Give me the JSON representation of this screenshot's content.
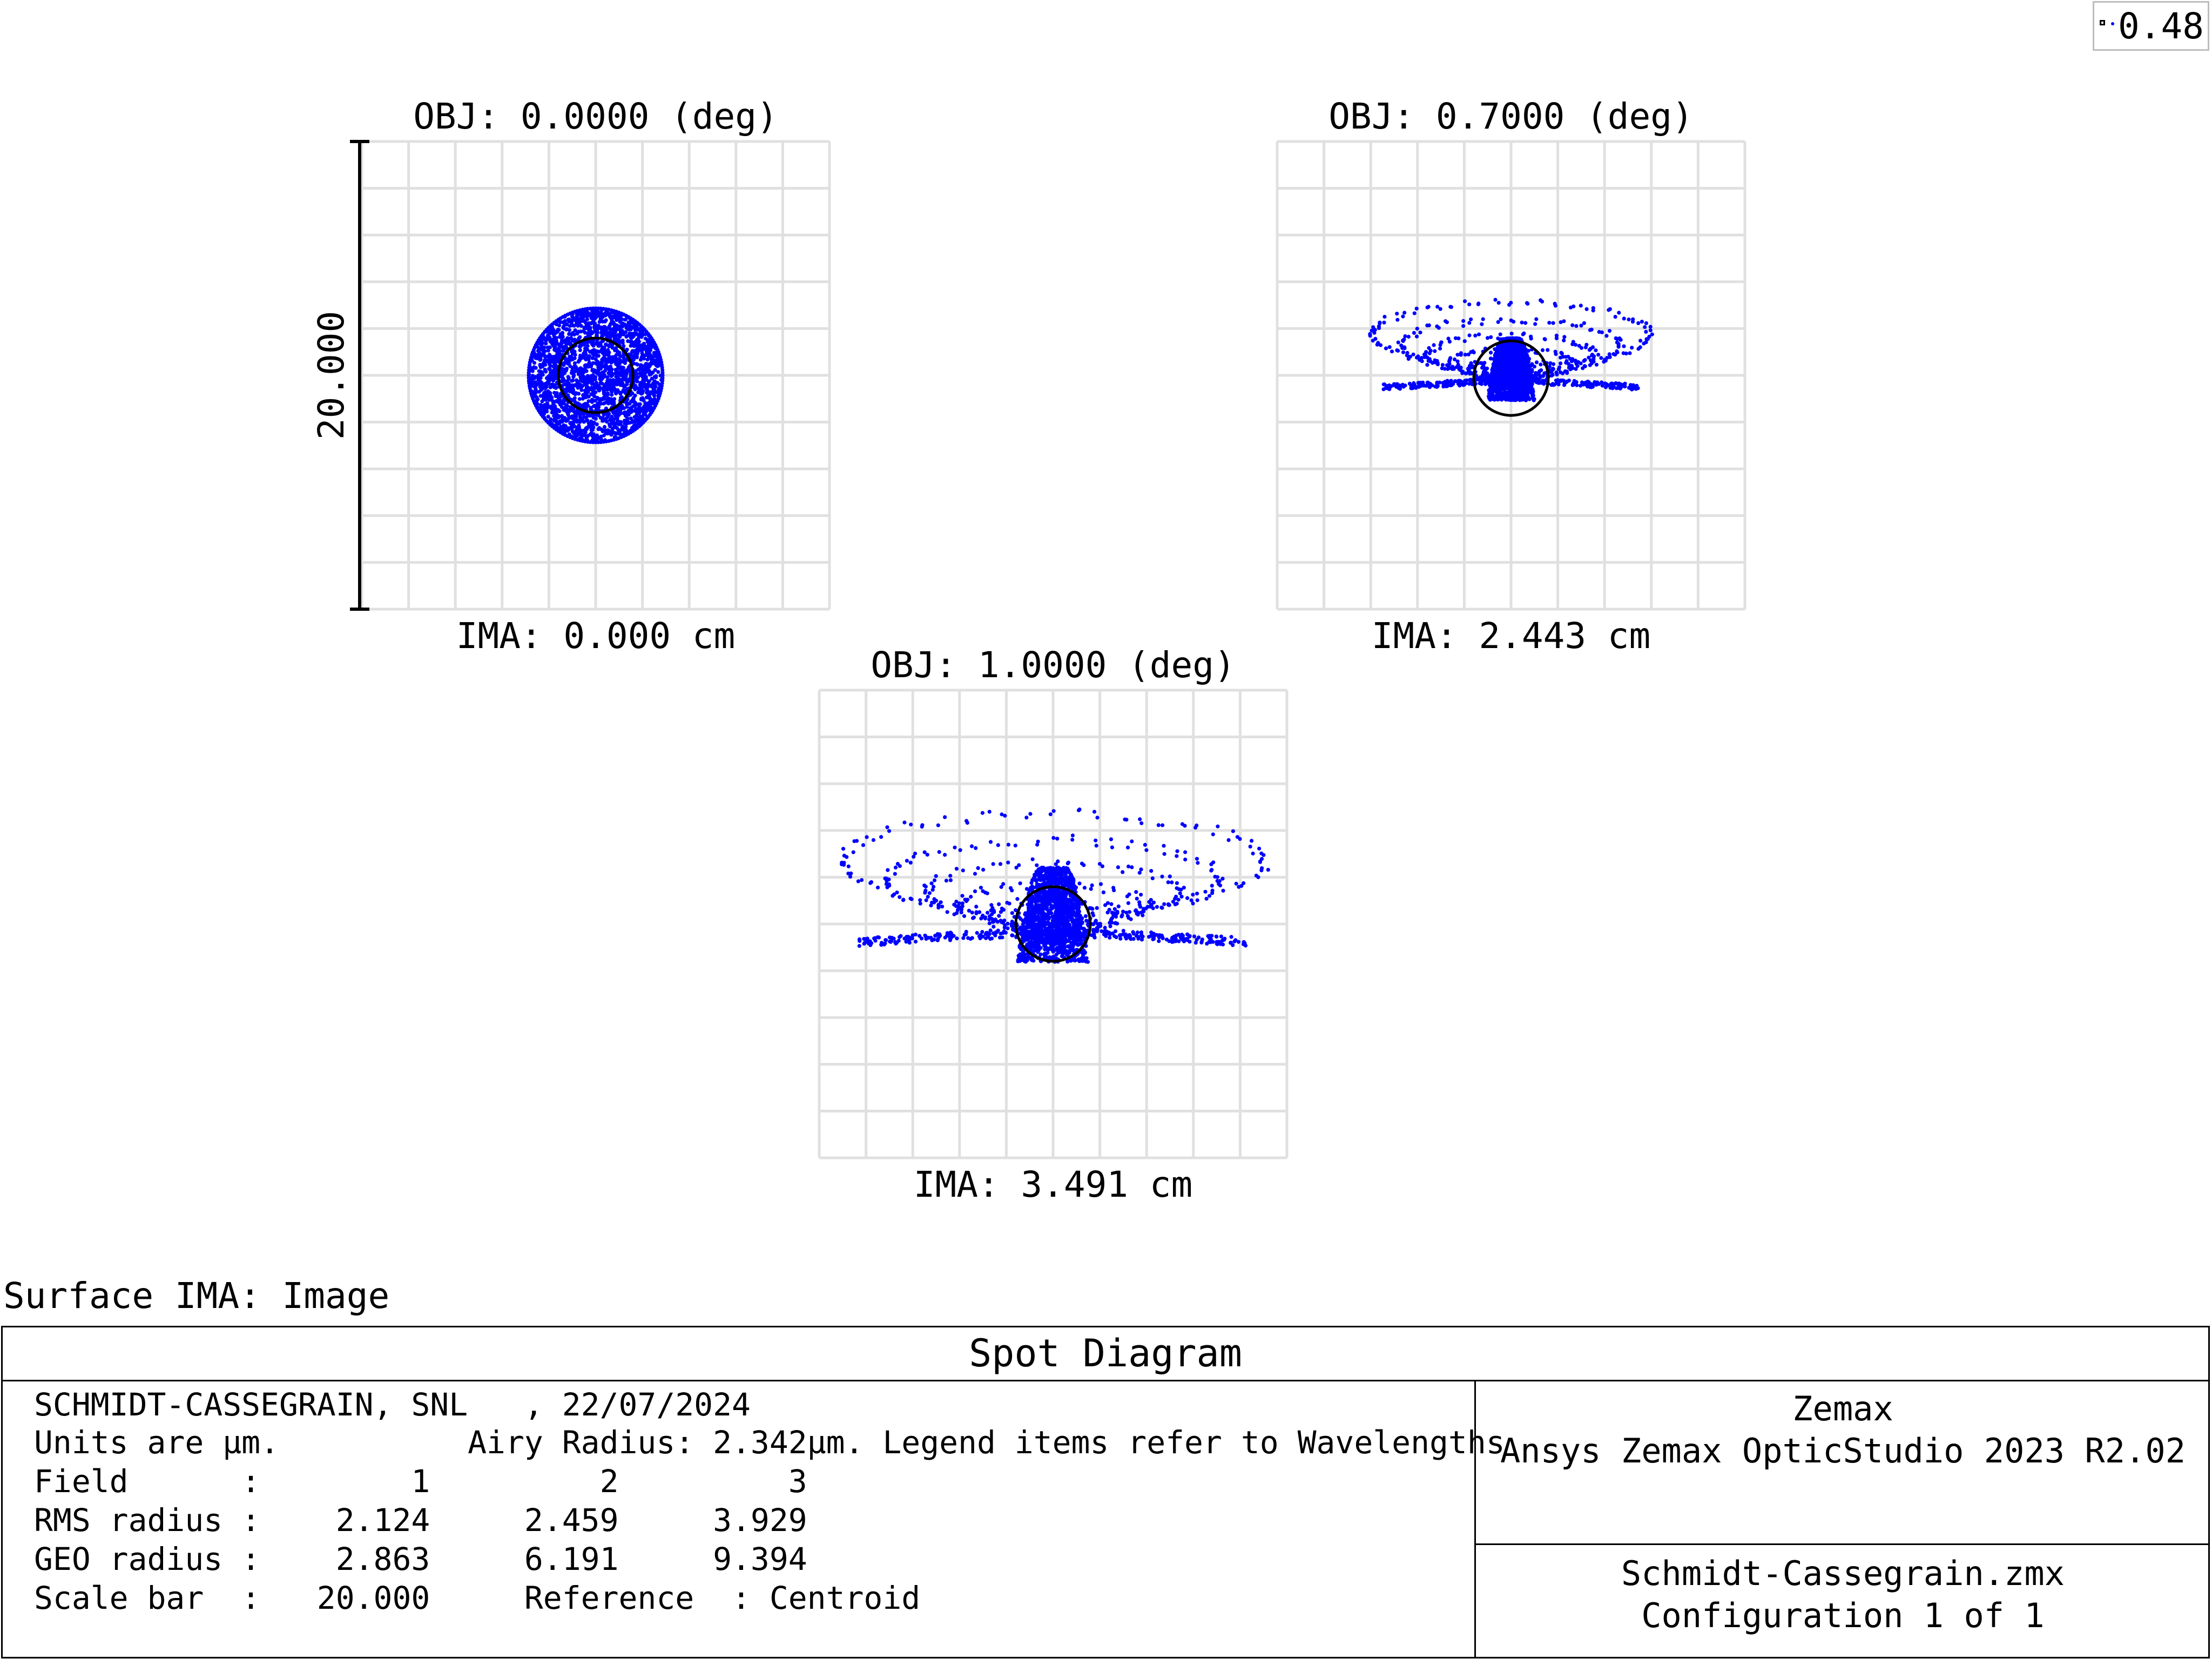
{
  "legend": {
    "label": "0.48"
  },
  "surface_label": "Surface IMA: Image",
  "chart_data": [
    {
      "type": "scatter",
      "title": "OBJ: 0.0000 (deg)",
      "xlabel": "IMA: 0.000 cm",
      "scale_bar_label": "20.000",
      "units": "µm",
      "span": 50,
      "airy_radius": 2.342,
      "airy_center": [
        0,
        0
      ],
      "spot": {
        "shape": "disk",
        "center": [
          0,
          0
        ],
        "radius": 2.863,
        "rms_radius": 2.124,
        "geo_radius": 2.863
      }
    },
    {
      "type": "scatter",
      "title": "OBJ: 0.7000 (deg)",
      "xlabel": "IMA: 2.443 cm",
      "units": "µm",
      "span": 50,
      "airy_radius": 2.342,
      "airy_center": [
        0,
        -0.3
      ],
      "spot": {
        "shape": "coma",
        "center": [
          0,
          0
        ],
        "rms_radius": 2.459,
        "geo_radius": 6.191
      }
    },
    {
      "type": "scatter",
      "title": "OBJ: 1.0000 (deg)",
      "xlabel": "IMA: 3.491 cm",
      "units": "µm",
      "span": 50,
      "airy_radius": 2.342,
      "airy_center": [
        0,
        0
      ],
      "spot": {
        "shape": "coma",
        "center": [
          0,
          0
        ],
        "rms_radius": 3.929,
        "geo_radius": 9.394
      }
    }
  ],
  "spot_color": "#0000ff",
  "grid_color": "#e0e0e0",
  "info": {
    "title": "Spot Diagram",
    "lines": [
      "SCHMIDT-CASSEGRAIN, SNL   , 22/07/2024",
      "Units are µm.          Airy Radius: 2.342µm. Legend items refer to Wavelengths",
      "Field      :        1         2         3",
      "RMS radius :    2.124     2.459     3.929",
      "GEO radius :    2.863     6.191     9.394",
      "Scale bar  :   20.000     Reference  : Centroid"
    ],
    "company": "Zemax",
    "product": "Ansys Zemax OpticStudio 2023 R2.02",
    "file": "Schmidt-Cassegrain.zmx",
    "config": "Configuration 1 of 1"
  }
}
